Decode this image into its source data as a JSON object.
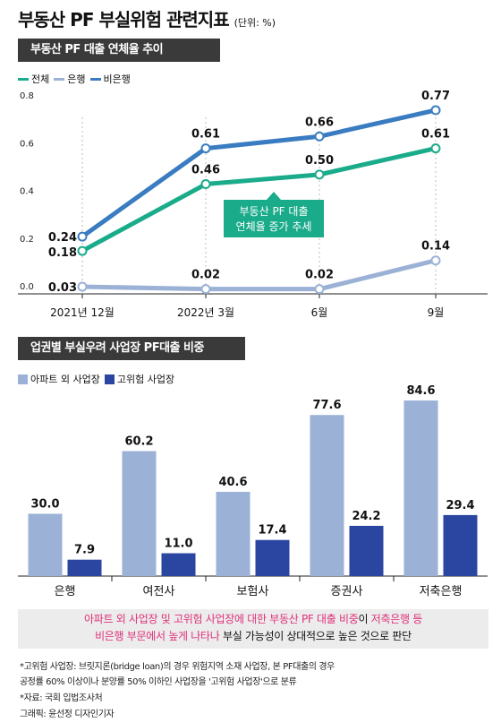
{
  "title": "부동산 PF 부실위험 관련지표",
  "unit": "(단위: %)",
  "chart1_heading": "부동산 PF 대출 연체율 추이",
  "chart2_heading": "업권별 부실우려 사업장 PF대출 비중",
  "colors": {
    "total": "#1aab8a",
    "bank": "#9bb1d6",
    "nonbank": "#3a7cc1",
    "apt_other": "#9bb1d6",
    "high_risk": "#2b46a0",
    "accent_pink": "#e0307a",
    "annotation_box": "#1aab8a"
  },
  "chart_data": [
    {
      "type": "line",
      "x": [
        "2021년 12월",
        "2022년 3월",
        "6월",
        "9월"
      ],
      "series": [
        {
          "name": "전체",
          "values": [
            0.18,
            0.46,
            0.5,
            0.61
          ],
          "labels": [
            "0.18",
            "0.46",
            "0.50",
            "0.61"
          ]
        },
        {
          "name": "은행",
          "values": [
            0.03,
            0.02,
            0.02,
            0.14
          ],
          "labels": [
            "0.03",
            "0.02",
            "0.02",
            "0.14"
          ]
        },
        {
          "name": "비은행",
          "values": [
            0.24,
            0.61,
            0.66,
            0.77
          ],
          "labels": [
            "0.24",
            "0.61",
            "0.66",
            "0.77"
          ]
        }
      ],
      "ylim": [
        0,
        0.8
      ],
      "yticks": [
        "0.0",
        "0.2",
        "0.4",
        "0.6",
        "0.8"
      ],
      "ytick_values": [
        0,
        0.2,
        0.4,
        0.6,
        0.8
      ],
      "annotation": [
        "부동산 PF 대출",
        "연체율 증가 추세"
      ],
      "grid": false,
      "legend": "top-left"
    },
    {
      "type": "bar",
      "categories": [
        "은행",
        "여전사",
        "보험사",
        "증권사",
        "저축은행"
      ],
      "series": [
        {
          "name": "아파트 외 사업장",
          "values": [
            30.0,
            60.2,
            40.6,
            77.6,
            84.6
          ],
          "labels": [
            "30.0",
            "60.2",
            "40.6",
            "77.6",
            "84.6"
          ]
        },
        {
          "name": "고위험 사업장",
          "values": [
            7.9,
            11.0,
            17.4,
            24.2,
            29.4
          ],
          "labels": [
            "7.9",
            "11.0",
            "17.4",
            "24.2",
            "29.4"
          ]
        }
      ],
      "ylim": [
        0,
        100
      ],
      "legend": "top-left"
    }
  ],
  "note": {
    "line1_pink_a": "아파트 외 사업장 및 고위험 사업장에 대한 부동산 PF 대출 비중",
    "line1_black": "이 ",
    "line1_pink_b": "저축은행 등",
    "line2_pink": "비은행 부문에서 높게 나타나",
    "line2_black": " 부실 가능성이 상대적으로 높은 것으로 판단"
  },
  "footnotes": {
    "def1": "*고위험 사업장: 브릿지론(bridge loan)의 경우 위험지역 소재 사업장, 본 PF대출의 경우",
    "def2": "공정률 60% 이상이나 분양률 50% 이하인 사업장을 '고위험 사업장'으로 분류",
    "source": "*자료: 국회 입법조사처",
    "graphic": "그래픽: 윤선정 디자인기자"
  }
}
